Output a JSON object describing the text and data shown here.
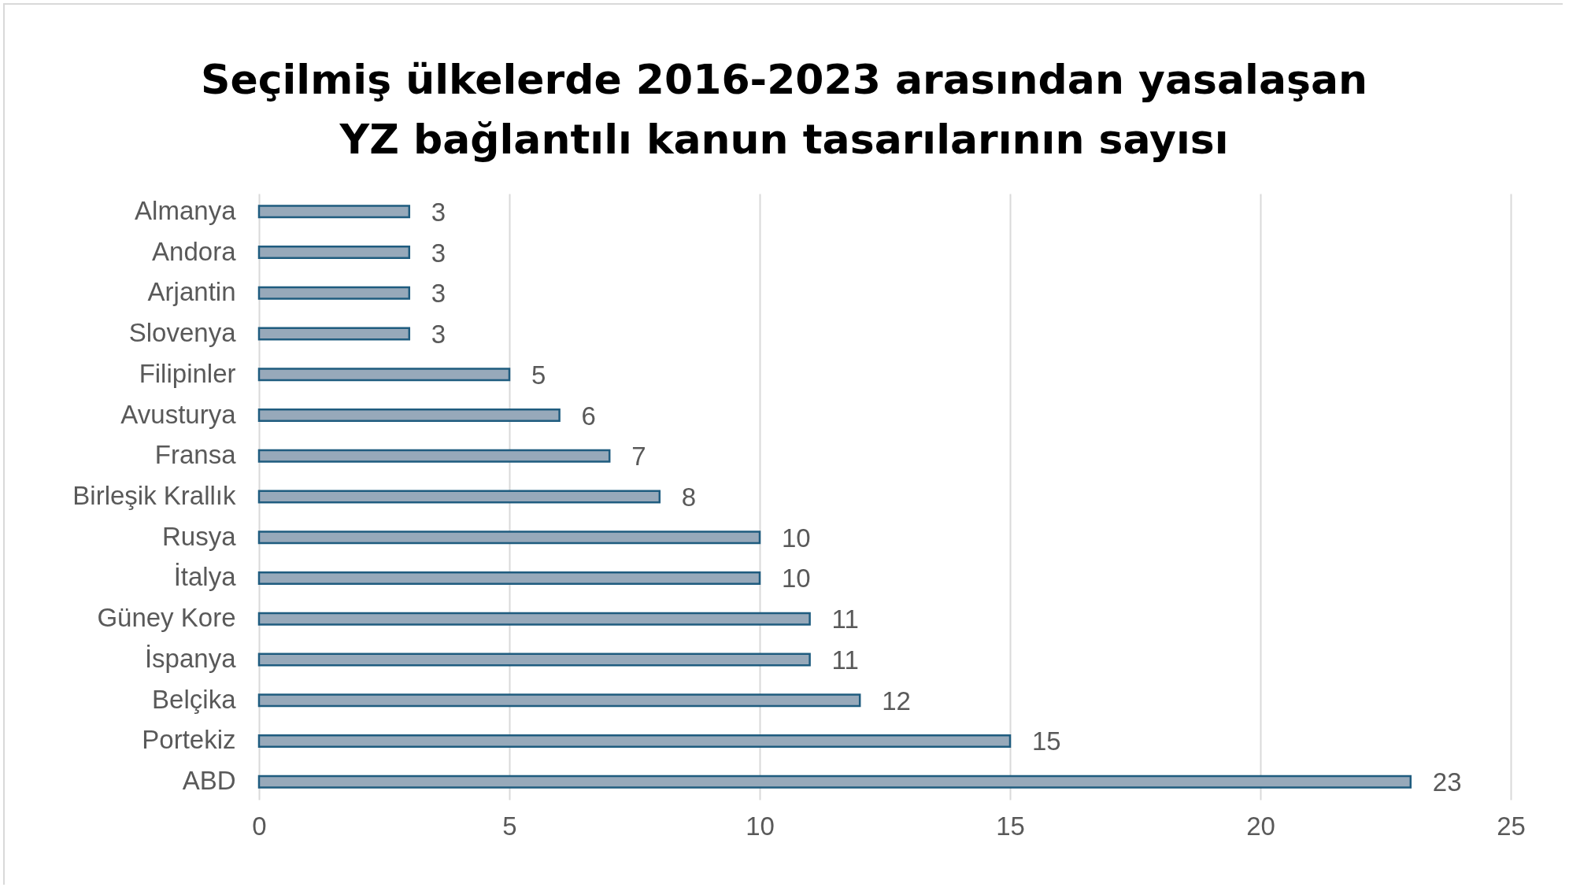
{
  "chart_data": {
    "type": "bar",
    "orientation": "horizontal",
    "title": [
      "Seçilmiş ülkelerde 2016-2023 arasından yasalaşan",
      "YZ bağlantılı kanun tasarılarının sayısı"
    ],
    "categories": [
      "Almanya",
      "Andora",
      "Arjantin",
      "Slovenya",
      "Filipinler",
      "Avusturya",
      "Fransa",
      "Birleşik Krallık",
      "Rusya",
      "İtalya",
      "Güney Kore",
      "İspanya",
      "Belçika",
      "Portekiz",
      "ABD"
    ],
    "values": [
      3,
      3,
      3,
      3,
      5,
      6,
      7,
      8,
      10,
      10,
      11,
      11,
      12,
      15,
      23
    ],
    "color": "#97a9ba",
    "xlim": [
      0,
      25
    ],
    "xticks": [
      0,
      5,
      10,
      15,
      20,
      25
    ],
    "grid": "x",
    "data_labels": true
  }
}
